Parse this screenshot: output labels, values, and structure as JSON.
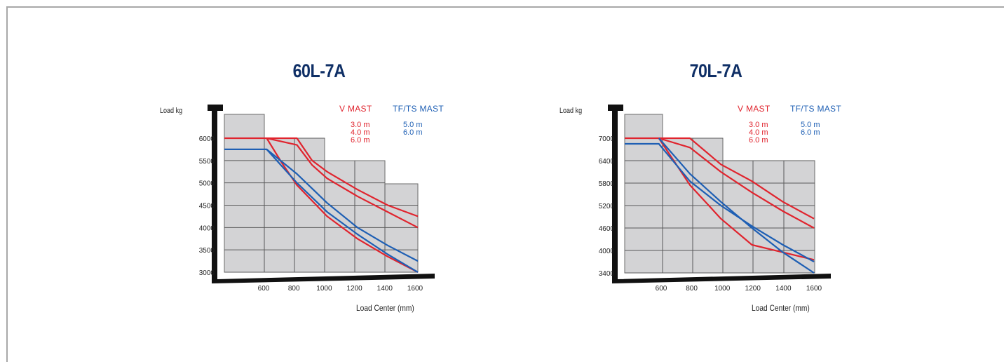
{
  "colors": {
    "v_mast": "#e0242e",
    "tf_mast": "#1e5fb4",
    "title": "#0f2f66",
    "grid_fill": "#d3d3d5",
    "axis": "#111111"
  },
  "chart_data": [
    {
      "type": "line",
      "title": "60L-7A",
      "ylabel": "Load kg",
      "xlabel": "Load Center (mm)",
      "x_ticks": [
        600,
        800,
        1000,
        1200,
        1400,
        1600
      ],
      "y_ticks": [
        3000,
        3500,
        4000,
        4500,
        5000,
        5500,
        6000
      ],
      "xlim": [
        320,
        1600
      ],
      "ylim": [
        3000,
        6000
      ],
      "legend": {
        "v_header": "V MAST",
        "v_items": [
          "3.0 m",
          "4.0 m",
          "6.0 m"
        ],
        "tf_header": "TF/TS MAST",
        "tf_items": [
          "5.0 m",
          "6.0 m"
        ]
      },
      "series": [
        {
          "group": "v",
          "x": [
            320,
            600,
            800,
            900,
            1000,
            1200,
            1400,
            1600
          ],
          "y": [
            6000,
            6000,
            6000,
            5500,
            5250,
            4850,
            4500,
            4250
          ]
        },
        {
          "group": "v",
          "x": [
            600,
            800,
            900,
            1000,
            1200,
            1400,
            1600
          ],
          "y": [
            6000,
            5850,
            5400,
            5100,
            4700,
            4350,
            4000
          ]
        },
        {
          "group": "v",
          "x": [
            600,
            700,
            800,
            1000,
            1200,
            1400,
            1600
          ],
          "y": [
            6000,
            5450,
            4950,
            4250,
            3750,
            3350,
            3000
          ]
        },
        {
          "group": "tf",
          "x": [
            320,
            600,
            800,
            1000,
            1200,
            1400,
            1600
          ],
          "y": [
            5750,
            5750,
            5200,
            4550,
            4000,
            3600,
            3250
          ]
        },
        {
          "group": "tf",
          "x": [
            600,
            800,
            1000,
            1200,
            1400,
            1600
          ],
          "y": [
            5750,
            5000,
            4350,
            3850,
            3400,
            3000
          ]
        }
      ]
    },
    {
      "type": "line",
      "title": "70L-7A",
      "ylabel": "Load kg",
      "xlabel": "Load Center (mm)",
      "x_ticks": [
        600,
        800,
        1000,
        1200,
        1400,
        1600
      ],
      "y_ticks": [
        3400,
        4000,
        4600,
        5200,
        5800,
        6400,
        7000
      ],
      "xlim": [
        380,
        1600
      ],
      "ylim": [
        3400,
        7000
      ],
      "legend": {
        "v_header": "V MAST",
        "v_items": [
          "3.0 m",
          "4.0 m",
          "6.0 m"
        ],
        "tf_header": "TF/TS MAST",
        "tf_items": [
          "5.0 m",
          "6.0 m"
        ]
      },
      "series": [
        {
          "group": "v",
          "x": [
            380,
            600,
            800,
            1000,
            1200,
            1400,
            1600
          ],
          "y": [
            7000,
            7000,
            7000,
            6300,
            5850,
            5300,
            4850
          ]
        },
        {
          "group": "v",
          "x": [
            600,
            800,
            1000,
            1200,
            1400,
            1600
          ],
          "y": [
            7000,
            6750,
            6100,
            5550,
            5050,
            4600
          ]
        },
        {
          "group": "v",
          "x": [
            600,
            800,
            1000,
            1200,
            1400,
            1600
          ],
          "y": [
            7000,
            5750,
            4850,
            4150,
            3950,
            3750
          ]
        },
        {
          "group": "tf",
          "x": [
            380,
            600,
            800,
            1000,
            1200,
            1400,
            1600
          ],
          "y": [
            6850,
            6850,
            5850,
            5200,
            4650,
            4150,
            3700
          ]
        },
        {
          "group": "tf",
          "x": [
            600,
            800,
            1000,
            1200,
            1400,
            1600
          ],
          "y": [
            7000,
            6050,
            5300,
            4600,
            3950,
            3400
          ]
        }
      ]
    }
  ]
}
